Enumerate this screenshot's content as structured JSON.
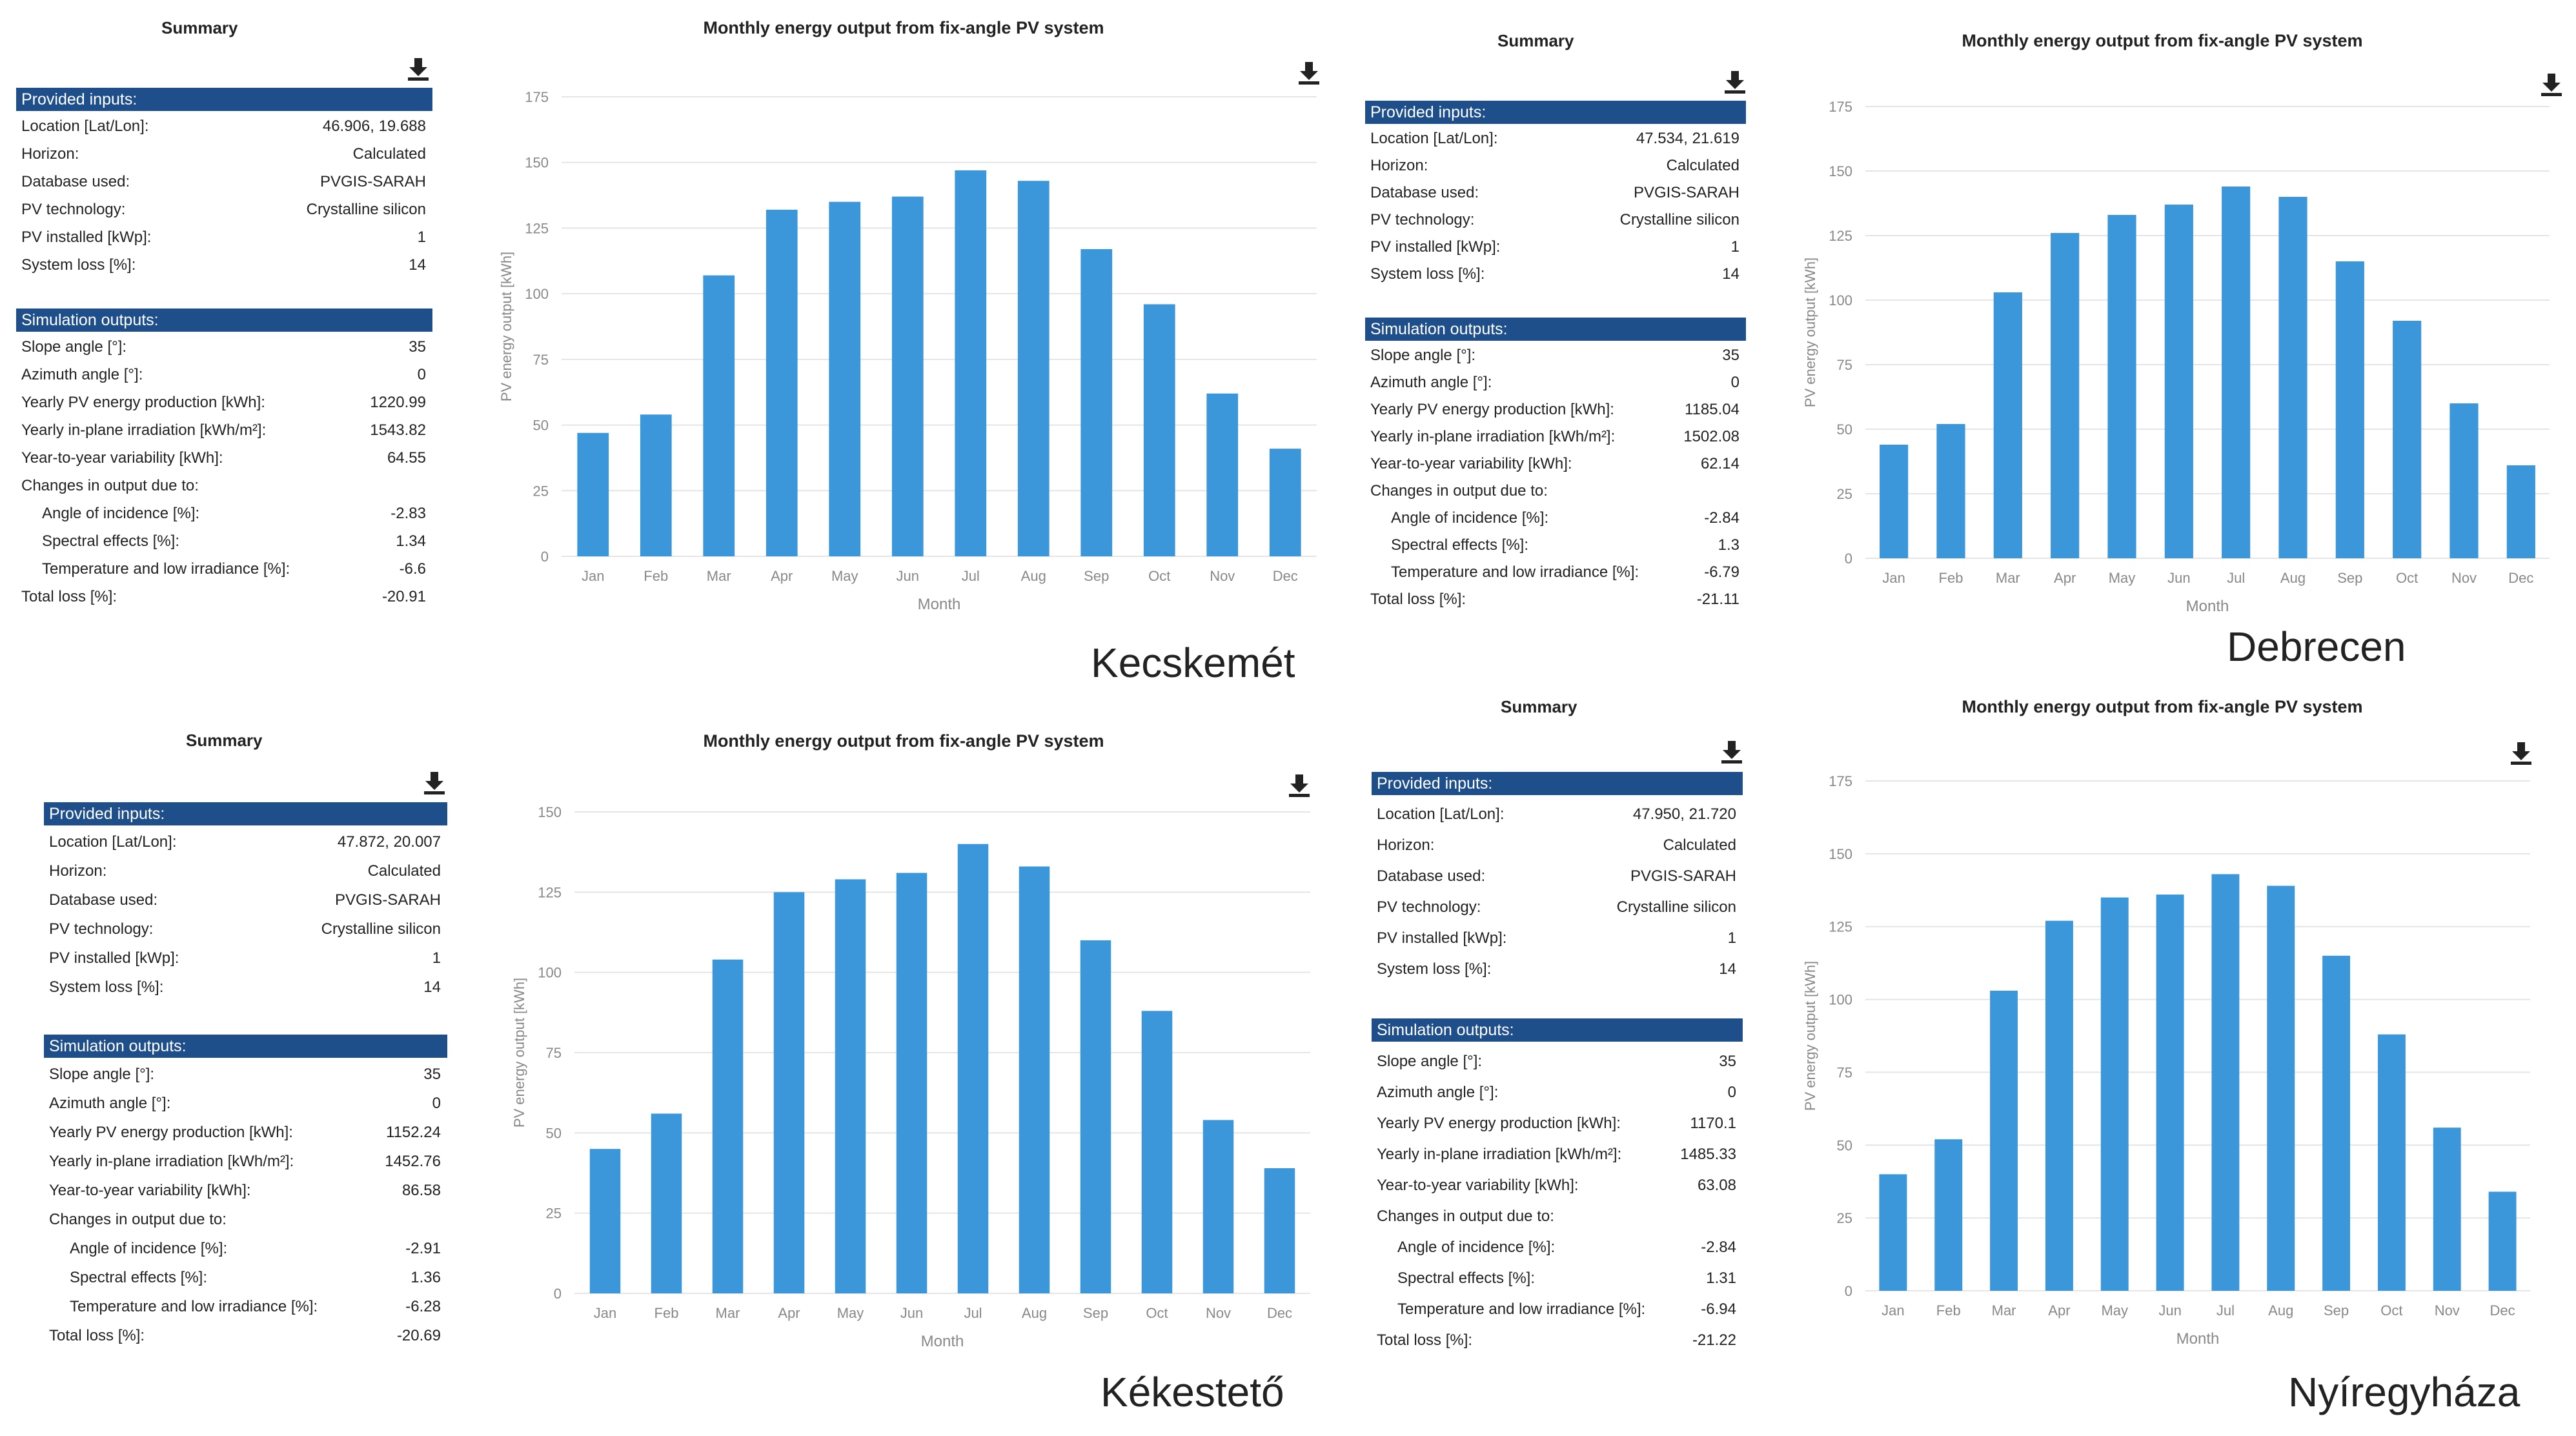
{
  "summary_title": "Summary",
  "chart_title": "Monthly energy output from fix-angle PV system",
  "provided_header": "Provided inputs:",
  "simulation_header": "Simulation outputs:",
  "labels": {
    "location": "Location [Lat/Lon]:",
    "horizon": "Horizon:",
    "database": "Database used:",
    "pvtech": "PV technology:",
    "installed": "PV installed [kWp]:",
    "sysloss": "System loss [%]:",
    "slope": "Slope angle [°]:",
    "azimuth": "Azimuth angle [°]:",
    "yearly_energy": "Yearly PV energy production [kWh]:",
    "yearly_irr": "Yearly in-plane irradiation [kWh/m²]:",
    "variability": "Year-to-year variability [kWh]:",
    "changes": "Changes in output due to:",
    "aoi": "Angle of incidence [%]:",
    "spectral": "Spectral effects [%]:",
    "temp": "Temperature and low irradiance [%]:",
    "total": "Total loss [%]:"
  },
  "icons": {
    "download": "download-icon"
  },
  "colors": {
    "bar": "#3b97d9",
    "header_bg": "#1f4f8b",
    "grid": "#e5e5e5"
  },
  "panels": [
    {
      "city": "Kecskemét",
      "provided": {
        "location": "46.906, 19.688",
        "horizon": "Calculated",
        "database": "PVGIS-SARAH",
        "pvtech": "Crystalline silicon",
        "installed": "1",
        "sysloss": "14"
      },
      "simulation": {
        "slope": "35",
        "azimuth": "0",
        "yearly_energy": "1220.99",
        "yearly_irr": "1543.82",
        "variability": "64.55",
        "aoi": "-2.83",
        "spectral": "1.34",
        "temp": "-6.6",
        "total": "-20.91"
      }
    },
    {
      "city": "Debrecen",
      "provided": {
        "location": "47.534, 21.619",
        "horizon": "Calculated",
        "database": "PVGIS-SARAH",
        "pvtech": "Crystalline silicon",
        "installed": "1",
        "sysloss": "14"
      },
      "simulation": {
        "slope": "35",
        "azimuth": "0",
        "yearly_energy": "1185.04",
        "yearly_irr": "1502.08",
        "variability": "62.14",
        "aoi": "-2.84",
        "spectral": "1.3",
        "temp": "-6.79",
        "total": "-21.11"
      }
    },
    {
      "city": "Kékestető",
      "provided": {
        "location": "47.872, 20.007",
        "horizon": "Calculated",
        "database": "PVGIS-SARAH",
        "pvtech": "Crystalline silicon",
        "installed": "1",
        "sysloss": "14"
      },
      "simulation": {
        "slope": "35",
        "azimuth": "0",
        "yearly_energy": "1152.24",
        "yearly_irr": "1452.76",
        "variability": "86.58",
        "aoi": "-2.91",
        "spectral": "1.36",
        "temp": "-6.28",
        "total": "-20.69"
      }
    },
    {
      "city": "Nyíregyháza",
      "provided": {
        "location": "47.950, 21.720",
        "horizon": "Calculated",
        "database": "PVGIS-SARAH",
        "pvtech": "Crystalline silicon",
        "installed": "1",
        "sysloss": "14"
      },
      "simulation": {
        "slope": "35",
        "azimuth": "0",
        "yearly_energy": "1170.1",
        "yearly_irr": "1485.33",
        "variability": "63.08",
        "aoi": "-2.84",
        "spectral": "1.31",
        "temp": "-6.94",
        "total": "-21.22"
      }
    }
  ],
  "chart_data": [
    {
      "type": "bar",
      "title": "Monthly energy output from fix-angle PV system",
      "xlabel": "Month",
      "ylabel": "PV energy output [kWh]",
      "categories": [
        "Jan",
        "Feb",
        "Mar",
        "Apr",
        "May",
        "Jun",
        "Jul",
        "Aug",
        "Sep",
        "Oct",
        "Nov",
        "Dec"
      ],
      "values": [
        47,
        54,
        107,
        132,
        135,
        137,
        147,
        143,
        117,
        96,
        62,
        41
      ],
      "ylim": [
        0,
        175
      ],
      "yticks": [
        0,
        25,
        50,
        75,
        100,
        125,
        150,
        175
      ],
      "grid": true
    },
    {
      "type": "bar",
      "title": "Monthly energy output from fix-angle PV system",
      "xlabel": "Month",
      "ylabel": "PV energy output [kWh]",
      "categories": [
        "Jan",
        "Feb",
        "Mar",
        "Apr",
        "May",
        "Jun",
        "Jul",
        "Aug",
        "Sep",
        "Oct",
        "Nov",
        "Dec"
      ],
      "values": [
        44,
        52,
        103,
        126,
        133,
        137,
        144,
        140,
        115,
        92,
        60,
        36
      ],
      "ylim": [
        0,
        175
      ],
      "yticks": [
        0,
        25,
        50,
        75,
        100,
        125,
        150,
        175
      ],
      "grid": true
    },
    {
      "type": "bar",
      "title": "Monthly energy output from fix-angle PV system",
      "xlabel": "Month",
      "ylabel": "PV energy output [kWh]",
      "categories": [
        "Jan",
        "Feb",
        "Mar",
        "Apr",
        "May",
        "Jun",
        "Jul",
        "Aug",
        "Sep",
        "Oct",
        "Nov",
        "Dec"
      ],
      "values": [
        45,
        56,
        104,
        125,
        129,
        131,
        140,
        133,
        110,
        88,
        54,
        39
      ],
      "ylim": [
        0,
        150
      ],
      "yticks": [
        0,
        25,
        50,
        75,
        100,
        125,
        150
      ],
      "grid": true
    },
    {
      "type": "bar",
      "title": "Monthly energy output from fix-angle PV system",
      "xlabel": "Month",
      "ylabel": "PV energy output [kWh]",
      "categories": [
        "Jan",
        "Feb",
        "Mar",
        "Apr",
        "May",
        "Jun",
        "Jul",
        "Aug",
        "Sep",
        "Oct",
        "Nov",
        "Dec"
      ],
      "values": [
        40,
        52,
        103,
        127,
        135,
        136,
        143,
        139,
        115,
        88,
        56,
        34
      ],
      "ylim": [
        0,
        175
      ],
      "yticks": [
        0,
        25,
        50,
        75,
        100,
        125,
        150,
        175
      ],
      "grid": true
    }
  ]
}
